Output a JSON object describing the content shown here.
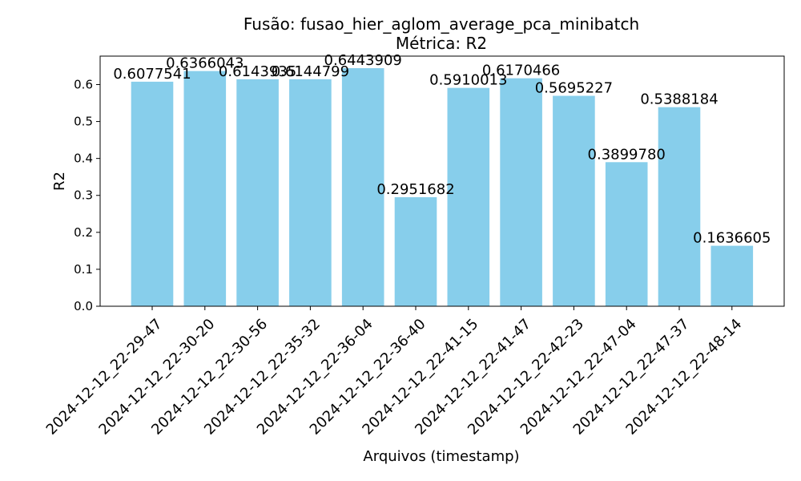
{
  "chart_data": {
    "type": "bar",
    "title": "Fusão: fusao_hier_aglom_average_pca_minibatch",
    "subtitle": "Métrica: R2",
    "xlabel": "Arquivos (timestamp)",
    "ylabel": "R2",
    "ylim": [
      0,
      0.677
    ],
    "yticks": [
      0.0,
      0.1,
      0.2,
      0.3,
      0.4,
      0.5,
      0.6
    ],
    "ytick_labels": [
      "0.0",
      "0.1",
      "0.2",
      "0.3",
      "0.4",
      "0.5",
      "0.6"
    ],
    "grid": false,
    "categories": [
      "2024-12-12_22-29-47",
      "2024-12-12_22-30-20",
      "2024-12-12_22-30-56",
      "2024-12-12_22-35-32",
      "2024-12-12_22-36-04",
      "2024-12-12_22-36-40",
      "2024-12-12_22-41-15",
      "2024-12-12_22-41-47",
      "2024-12-12_22-42-23",
      "2024-12-12_22-47-04",
      "2024-12-12_22-47-37",
      "2024-12-12_22-48-14"
    ],
    "values": [
      0.6077541,
      0.6366043,
      0.6143935,
      0.6144799,
      0.6443909,
      0.2951682,
      0.5910013,
      0.6170466,
      0.5695227,
      0.389978,
      0.5388184,
      0.1636605
    ],
    "value_labels": [
      "0.6077541",
      "0.6366043",
      "0.6143935",
      "0.6144799",
      "0.6443909",
      "0.2951682",
      "0.5910013",
      "0.6170466",
      "0.5695227",
      "0.3899780",
      "0.5388184",
      "0.1636605"
    ],
    "bar_color": "#87ceeb"
  }
}
